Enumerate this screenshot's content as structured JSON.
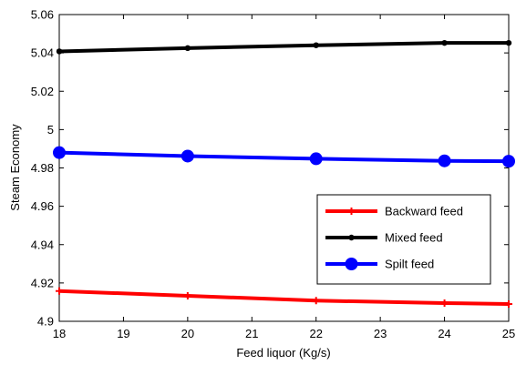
{
  "chart_data": {
    "type": "line",
    "xlabel": "Feed liquor (Kg/s)",
    "ylabel": "Steam Economy",
    "xlim": [
      18,
      25
    ],
    "ylim": [
      4.9,
      5.06
    ],
    "xticks": [
      "18",
      "19",
      "20",
      "21",
      "22",
      "23",
      "24",
      "25"
    ],
    "yticks": [
      "4.9",
      "4.92",
      "4.94",
      "4.96",
      "4.98",
      "5",
      "5.02",
      "5.04",
      "5.06"
    ],
    "grid": false,
    "legend_position": "right",
    "series": [
      {
        "name": "Backward feed",
        "color": "#ff0000",
        "marker": "plus",
        "x": [
          18,
          20,
          22,
          24,
          25
        ],
        "y": [
          4.9158,
          4.9133,
          4.9108,
          4.9095,
          4.909
        ]
      },
      {
        "name": "Mixed feed",
        "color": "#000000",
        "marker": "dot",
        "x": [
          18,
          20,
          22,
          24,
          25
        ],
        "y": [
          5.0408,
          5.0425,
          5.044,
          5.0452,
          5.0452
        ]
      },
      {
        "name": "Spilt feed",
        "color": "#0000ff",
        "marker": "circle",
        "x": [
          18,
          20,
          22,
          24,
          25
        ],
        "y": [
          4.988,
          4.9862,
          4.9848,
          4.9837,
          4.9835
        ]
      }
    ]
  }
}
